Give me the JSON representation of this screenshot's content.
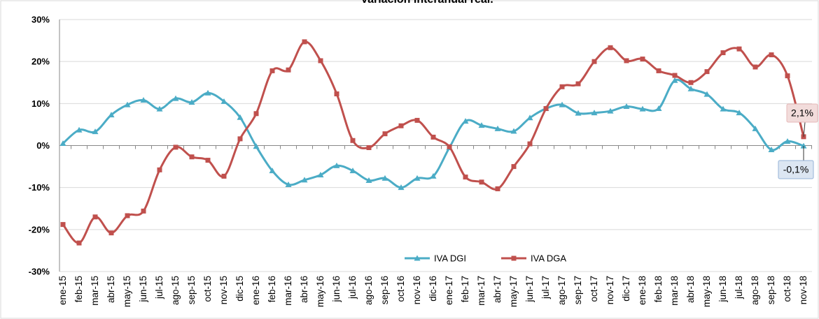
{
  "chart_data": {
    "type": "line",
    "title": "Variación interanual real.",
    "categories": [
      "ene-15",
      "feb-15",
      "mar-15",
      "abr-15",
      "may-15",
      "jun-15",
      "jul-15",
      "ago-15",
      "sep-15",
      "oct-15",
      "nov-15",
      "dic-15",
      "ene-16",
      "feb-16",
      "mar-16",
      "abr-16",
      "may-16",
      "jun-16",
      "jul-16",
      "ago-16",
      "sep-16",
      "oct-16",
      "nov-16",
      "dic-16",
      "ene-17",
      "feb-17",
      "mar-17",
      "abr-17",
      "may-17",
      "jun-17",
      "jul-17",
      "ago-17",
      "sep-17",
      "oct-17",
      "nov-17",
      "dic-17",
      "ene-18",
      "feb-18",
      "mar-18",
      "abr-18",
      "may-18",
      "jun-18",
      "jul-18",
      "ago-18",
      "sep-18",
      "oct-18",
      "nov-18"
    ],
    "series": [
      {
        "name": "IVA DGI",
        "color": "#4bacc6",
        "marker": "triangle",
        "values": [
          0.5,
          3.7,
          3.3,
          7.3,
          9.7,
          10.8,
          8.7,
          11.2,
          10.3,
          12.5,
          10.5,
          6.7,
          -0.2,
          -6,
          -9.3,
          -8.2,
          -7,
          -4.8,
          -6,
          -8.3,
          -7.8,
          -10,
          -7.8,
          -7.3,
          -0.5,
          5.8,
          4.8,
          4,
          3.4,
          6.6,
          8.8,
          9.7,
          7.7,
          7.8,
          8.2,
          9.3,
          8.7,
          8.8,
          15.5,
          13.5,
          12.2,
          8.7,
          7.8,
          4,
          -1,
          1,
          -0.1
        ],
        "value_labels": [
          null,
          null,
          null,
          null,
          null,
          null,
          null,
          null,
          null,
          null,
          null,
          null,
          null,
          null,
          null,
          null,
          null,
          null,
          null,
          null,
          null,
          null,
          null,
          null,
          null,
          null,
          null,
          null,
          null,
          null,
          null,
          null,
          null,
          null,
          null,
          null,
          null,
          null,
          null,
          null,
          null,
          null,
          null,
          null,
          null,
          null,
          "-0,1%"
        ]
      },
      {
        "name": "IVA DGA",
        "color": "#c0504d",
        "marker": "square",
        "values": [
          -18.8,
          -23.2,
          -17,
          -20.8,
          -16.7,
          -15.6,
          -5.8,
          -0.4,
          -2.7,
          -3.5,
          -7.3,
          1.6,
          7.6,
          17.8,
          18,
          24.7,
          20.2,
          12.3,
          1.2,
          -0.5,
          2.8,
          4.7,
          6,
          2,
          -0.3,
          -7.5,
          -8.7,
          -10.3,
          -5,
          0.4,
          8.8,
          14,
          14.7,
          20,
          23.3,
          20.2,
          20.6,
          17.8,
          16.7,
          15,
          17.6,
          22.1,
          23,
          18.7,
          21.6,
          16.6,
          2.1
        ],
        "value_labels": [
          null,
          null,
          null,
          null,
          null,
          null,
          null,
          null,
          null,
          null,
          null,
          null,
          null,
          null,
          null,
          null,
          null,
          null,
          null,
          null,
          null,
          null,
          null,
          null,
          null,
          null,
          null,
          null,
          null,
          null,
          null,
          null,
          null,
          null,
          null,
          null,
          null,
          null,
          null,
          null,
          null,
          null,
          null,
          null,
          null,
          null,
          "2,1%"
        ]
      }
    ],
    "ylim": [
      -30,
      30
    ],
    "yticks": [
      {
        "value": -30,
        "label": "-30%"
      },
      {
        "value": -20,
        "label": "-20%"
      },
      {
        "value": -10,
        "label": "-10%"
      },
      {
        "value": 0,
        "label": "0%"
      },
      {
        "value": 10,
        "label": "10%"
      },
      {
        "value": 20,
        "label": "20%"
      },
      {
        "value": 30,
        "label": "30%"
      }
    ],
    "grid": true,
    "legend": "bottom"
  }
}
